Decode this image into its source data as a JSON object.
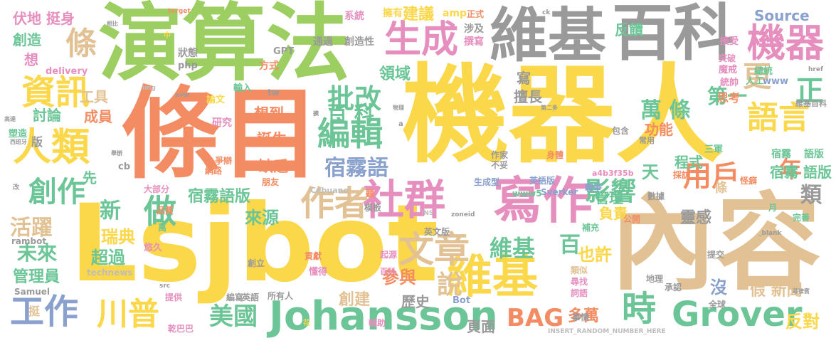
{
  "palette": {
    "orange": "#F48C63",
    "yellow": "#FBD74A",
    "green": "#9DCE62",
    "gray": "#9A9A9A",
    "tan": "#E2C294",
    "teal": "#6BC597",
    "pink": "#E68FBE",
    "blue": "#8AA1CE",
    "light_gray": "#BDBDBD"
  },
  "words": [
    {
      "text": "機器人",
      "color": "yellow"
    },
    {
      "text": "演算法",
      "color": "green"
    },
    {
      "text": "條目",
      "color": "orange"
    },
    {
      "text": "Lsjbot",
      "color": "yellow"
    },
    {
      "text": "內容",
      "color": "tan"
    },
    {
      "text": "維基",
      "color": "gray"
    },
    {
      "text": "百科",
      "color": "gray"
    },
    {
      "text": "寫作",
      "color": "pink"
    },
    {
      "text": "社群",
      "color": "pink"
    },
    {
      "text": "機器",
      "color": "pink"
    },
    {
      "text": "生成",
      "color": "pink"
    },
    {
      "text": "Johansson",
      "color": "teal"
    },
    {
      "text": "維基",
      "color": "yellow"
    },
    {
      "text": "Grover",
      "color": "teal"
    },
    {
      "text": "人類",
      "color": "yellow"
    },
    {
      "text": "資訊",
      "color": "yellow"
    },
    {
      "text": "作者",
      "color": "tan"
    },
    {
      "text": "文章",
      "color": "tan"
    },
    {
      "text": "編輯",
      "color": "teal"
    },
    {
      "text": "工作",
      "color": "blue"
    },
    {
      "text": "川普",
      "color": "yellow"
    },
    {
      "text": "語言",
      "color": "yellow"
    },
    {
      "text": "時",
      "color": "teal"
    },
    {
      "text": "批改",
      "color": "teal"
    },
    {
      "text": "用戶",
      "color": "orange"
    },
    {
      "text": "想到",
      "color": "orange"
    },
    {
      "text": "誕生",
      "color": "orange"
    },
    {
      "text": "缺乏",
      "color": "orange"
    },
    {
      "text": "創作",
      "color": "teal"
    },
    {
      "text": "做",
      "color": "teal"
    },
    {
      "text": "條",
      "color": "tan"
    },
    {
      "text": "美國",
      "color": "teal"
    },
    {
      "text": "BAG",
      "color": "orange"
    },
    {
      "text": "宿霧語",
      "color": "blue"
    },
    {
      "text": "影響",
      "color": "teal"
    },
    {
      "text": "維基",
      "color": "teal"
    },
    {
      "text": "百",
      "color": "teal"
    },
    {
      "text": "說",
      "color": "tan"
    },
    {
      "text": "百 科",
      "color": "teal"
    },
    {
      "text": "萬 條",
      "color": "teal"
    },
    {
      "text": "第一",
      "color": "teal"
    },
    {
      "text": "更",
      "color": "tan"
    },
    {
      "text": "正",
      "color": "teal"
    },
    {
      "text": "年",
      "color": "orange"
    },
    {
      "text": "類",
      "color": "gray"
    },
    {
      "text": "活躍",
      "color": "tan"
    },
    {
      "text": "未來",
      "color": "teal"
    },
    {
      "text": "管理員",
      "color": "teal"
    },
    {
      "text": "瑞典",
      "color": "yellow"
    },
    {
      "text": "超過",
      "color": "teal"
    },
    {
      "text": "新",
      "color": "teal"
    },
    {
      "text": "宿霧語版",
      "color": "teal"
    },
    {
      "text": "來源",
      "color": "teal"
    },
    {
      "text": "參與",
      "color": "orange"
    },
    {
      "text": "歷史",
      "color": "gray"
    },
    {
      "text": "創建",
      "color": "tan"
    },
    {
      "text": "頁面",
      "color": "gray"
    },
    {
      "text": "多萬",
      "color": "orange"
    },
    {
      "text": "反對",
      "color": "yellow"
    },
    {
      "text": "假 新聞",
      "color": "tan"
    },
    {
      "text": "沒",
      "color": "blue"
    },
    {
      "text": "靈感",
      "color": "gray"
    },
    {
      "text": "負責",
      "color": "yellow"
    },
    {
      "text": "管理",
      "color": "teal"
    },
    {
      "text": "程式",
      "color": "teal"
    },
    {
      "text": "天",
      "color": "teal"
    },
    {
      "text": "功能",
      "color": "orange"
    },
    {
      "text": "也許",
      "color": "yellow"
    },
    {
      "text": "領域",
      "color": "teal"
    },
    {
      "text": "建議",
      "color": "yellow"
    },
    {
      "text": "反饋",
      "color": "teal"
    },
    {
      "text": "Source",
      "color": "blue"
    },
    {
      "text": "伏地 挺身",
      "color": "pink"
    },
    {
      "text": "創造",
      "color": "teal"
    },
    {
      "text": "想",
      "color": "pink"
    },
    {
      "text": "工具",
      "color": "tan"
    },
    {
      "text": "討論",
      "color": "teal"
    },
    {
      "text": "成員",
      "color": "orange"
    },
    {
      "text": "宿霧 語版",
      "color": "teal"
    },
    {
      "text": "寫",
      "color": "gray"
    },
    {
      "text": "思考",
      "color": "orange"
    },
    {
      "text": "先",
      "color": "teal"
    },
    {
      "text": "擅長",
      "color": "gray"
    },
    {
      "text": "條",
      "color": "tan"
    },
    {
      "text": "版",
      "color": "gray"
    },
    {
      "text": "挺",
      "color": "tan"
    },
    {
      "text": "擁有",
      "color": "yellow"
    },
    {
      "text": "amp",
      "color": "yellow"
    },
    {
      "text": "正式",
      "color": "orange"
    },
    {
      "text": "撰寫",
      "color": "pink"
    },
    {
      "text": "系統",
      "color": "pink"
    },
    {
      "text": "通過",
      "color": "gray"
    },
    {
      "text": "創造性",
      "color": "gray"
    },
    {
      "text": "涉及",
      "color": "gray"
    },
    {
      "text": "狀態",
      "color": "gray"
    },
    {
      "text": "php",
      "color": "gray"
    },
    {
      "text": "GPT",
      "color": "gray"
    },
    {
      "text": "方式",
      "color": "orange"
    },
    {
      "text": "delivery",
      "color": "pink"
    },
    {
      "text": "輸入",
      "color": "teal"
    },
    {
      "text": "論文",
      "color": "yellow"
    },
    {
      "text": "tw",
      "color": "gray"
    },
    {
      "text": "研究",
      "color": "pink"
    },
    {
      "text": "塑造",
      "color": "teal"
    },
    {
      "text": "接受",
      "color": "pink"
    },
    {
      "text": "總統",
      "color": "teal"
    },
    {
      "text": "人工",
      "color": "teal"
    },
    {
      "text": "www",
      "color": "blue"
    },
    {
      "text": "魔戒",
      "color": "pink"
    },
    {
      "text": "統帥",
      "color": "pink"
    },
    {
      "text": "突破",
      "color": "pink"
    },
    {
      "text": "維基百科",
      "color": "gray"
    },
    {
      "text": "宿霧",
      "color": "teal"
    },
    {
      "text": "語版",
      "color": "teal"
    },
    {
      "text": "三軍",
      "color": "teal"
    },
    {
      "text": "作家",
      "color": "gray"
    },
    {
      "text": "不妥",
      "color": "gray"
    },
    {
      "text": "身體",
      "color": "orange"
    },
    {
      "text": "生成型",
      "color": "blue"
    },
    {
      "text": "英語版",
      "color": "blue"
    },
    {
      "text": "戰爭",
      "color": "blue"
    },
    {
      "text": "數據",
      "color": "gray"
    },
    {
      "text": "採訪",
      "color": "orange"
    },
    {
      "text": "怪癖",
      "color": "orange"
    },
    {
      "text": "包含",
      "color": "gray"
    },
    {
      "text": "常用",
      "color": "gray"
    },
    {
      "text": "www5",
      "color": "teal"
    },
    {
      "text": "Sverker",
      "color": "blue"
    },
    {
      "text": "a4b3f35b",
      "color": "pink"
    },
    {
      "text": "大部分",
      "color": "pink"
    },
    {
      "text": "cb",
      "color": "gray"
    },
    {
      "text": "爭辯",
      "color": "orange"
    },
    {
      "text": "網路",
      "color": "orange"
    },
    {
      "text": "朋友",
      "color": "orange"
    },
    {
      "text": "聽",
      "color": "orange"
    },
    {
      "text": "Cebuano",
      "color": "light_gray"
    },
    {
      "text": "品質",
      "color": "orange"
    },
    {
      "text": "萬",
      "color": "teal"
    },
    {
      "text": "悠久",
      "color": "pink"
    },
    {
      "text": "模板",
      "color": "gray"
    },
    {
      "text": "英文版",
      "color": "gray"
    },
    {
      "text": "補充",
      "color": "teal"
    },
    {
      "text": "公開",
      "color": "orange"
    },
    {
      "text": "完善",
      "color": "teal"
    },
    {
      "text": "月",
      "color": "teal"
    },
    {
      "text": "提交",
      "color": "gray"
    },
    {
      "text": "類似",
      "color": "tan"
    },
    {
      "text": "尋找",
      "color": "pink"
    },
    {
      "text": "詞語",
      "color": "pink"
    },
    {
      "text": "地理",
      "color": "gray"
    },
    {
      "text": "承認",
      "color": "gray"
    },
    {
      "text": "全球",
      "color": "gray"
    },
    {
      "text": "事情",
      "color": "gray"
    },
    {
      "text": "INSERT_RANDOM_NUMBER_HERE",
      "color": "light_gray"
    },
    {
      "text": "rambot",
      "color": "gray"
    },
    {
      "text": "technews",
      "color": "light_gray"
    },
    {
      "text": "Samuel",
      "color": "gray"
    },
    {
      "text": "提供",
      "color": "pink"
    },
    {
      "text": "編寫",
      "color": "gray"
    },
    {
      "text": "英語",
      "color": "gray"
    },
    {
      "text": "所有人",
      "color": "gray"
    },
    {
      "text": "創立",
      "color": "gray"
    },
    {
      "text": "貢獻",
      "color": "orange"
    },
    {
      "text": "懂得",
      "color": "pink"
    },
    {
      "text": "起源",
      "color": "pink"
    },
    {
      "text": "百科",
      "color": "pink"
    },
    {
      "text": "Bot",
      "color": "blue"
    },
    {
      "text": "乾巴巴",
      "color": "pink"
    },
    {
      "text": "輔助",
      "color": "pink"
    },
    {
      "text": "target",
      "color": "orange"
    },
    {
      "text": "ck",
      "color": "gray"
    },
    {
      "text": "href",
      "color": "gray"
    },
    {
      "text": "_blank",
      "color": "gray"
    },
    {
      "text": "zoneid",
      "color": "gray"
    },
    {
      "text": "INS",
      "color": "light_gray"
    },
    {
      "text": "src",
      "color": "gray"
    },
    {
      "text": "avw",
      "color": "gray"
    },
    {
      "text": "img",
      "color": "light_gray"
    },
    {
      "text": "a",
      "color": "gray"
    },
    {
      "text": "中",
      "color": "yellow"
    },
    {
      "text": "花",
      "color": "yellow"
    },
    {
      "text": "改",
      "color": "gray"
    },
    {
      "text": "相比",
      "color": "gray"
    },
    {
      "text": "高達",
      "color": "gray"
    },
    {
      "text": "西班牙",
      "color": "gray"
    },
    {
      "text": "第二多",
      "color": "gray"
    },
    {
      "text": "物理",
      "color": "gray"
    },
    {
      "text": "菲律賓",
      "color": "gray"
    },
    {
      "text": "擴",
      "color": "gray"
    },
    {
      "text": "舉辦",
      "color": "gray"
    }
  ]
}
